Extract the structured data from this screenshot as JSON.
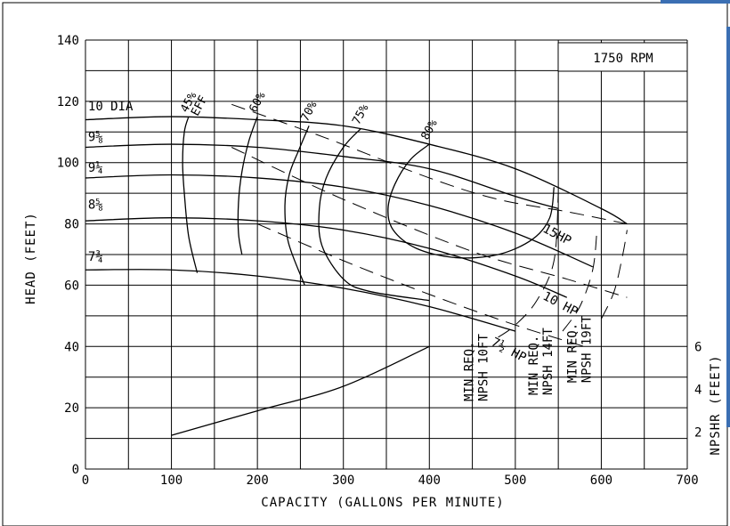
{
  "chart_data": {
    "type": "line",
    "title": "",
    "annotation_rpm": "1750 RPM",
    "xlabel": "CAPACITY (GALLONS PER MINUTE)",
    "ylabel": "HEAD (FEET)",
    "y2label": "NPSHR (FEET)",
    "xlim": [
      0,
      700
    ],
    "ylim": [
      0,
      140
    ],
    "x_ticks": [
      "0",
      "100",
      "200",
      "300",
      "400",
      "500",
      "600",
      "700"
    ],
    "y_ticks": [
      "0",
      "20",
      "40",
      "60",
      "80",
      "100",
      "120",
      "140"
    ],
    "y2_ticks": [
      {
        "label": "2",
        "head": 12
      },
      {
        "label": "4",
        "head": 26
      },
      {
        "label": "6",
        "head": 40
      }
    ],
    "grid": true,
    "impeller_curves": [
      {
        "name": "10 DIA",
        "label_at": [
          3,
          117
        ],
        "x": [
          0,
          100,
          200,
          300,
          400,
          500,
          600,
          630
        ],
        "y": [
          114,
          115,
          114,
          112,
          106,
          98,
          85,
          80
        ]
      },
      {
        "name": "9⅝",
        "label_at": [
          3,
          107
        ],
        "x": [
          0,
          100,
          200,
          300,
          400,
          500,
          550
        ],
        "y": [
          105,
          106,
          105,
          102,
          98,
          89,
          85
        ]
      },
      {
        "name": "9¼",
        "label_at": [
          3,
          97
        ],
        "x": [
          0,
          100,
          200,
          300,
          400,
          500,
          590
        ],
        "y": [
          95,
          96,
          95,
          92,
          86,
          77,
          66
        ]
      },
      {
        "name": "8⅝",
        "label_at": [
          3,
          85
        ],
        "x": [
          0,
          100,
          200,
          300,
          400,
          500,
          560
        ],
        "y": [
          81,
          82,
          81,
          78,
          72,
          63,
          56
        ]
      },
      {
        "name": "7¾",
        "label_at": [
          3,
          68
        ],
        "x": [
          0,
          100,
          200,
          300,
          400,
          500
        ],
        "y": [
          65,
          65,
          63,
          59,
          53,
          45
        ]
      }
    ],
    "efficiency_curves": [
      {
        "label": "45% EFF",
        "x": [
          120,
          115,
          113,
          115,
          120,
          130
        ],
        "y": [
          115,
          110,
          100,
          90,
          76,
          64
        ]
      },
      {
        "label": "60%",
        "x": [
          200,
          190,
          182,
          178,
          178,
          182
        ],
        "y": [
          115,
          107,
          97,
          87,
          77,
          70
        ]
      },
      {
        "label": "70%",
        "x": [
          260,
          248,
          237,
          232,
          236,
          255
        ],
        "y": [
          112,
          104,
          96,
          86,
          74,
          60
        ]
      },
      {
        "label": "75%",
        "x": [
          320,
          300,
          280,
          272,
          275,
          300,
          330,
          400
        ],
        "y": [
          111,
          105,
          95,
          85,
          73,
          62,
          58,
          55
        ]
      },
      {
        "label": "80%",
        "x": [
          400,
          378,
          360,
          352,
          358,
          385,
          430,
          480,
          520,
          540,
          545
        ],
        "y": [
          106,
          101,
          93,
          85,
          78,
          72,
          69,
          70,
          75,
          82,
          92
        ]
      }
    ],
    "horsepower_lines": [
      {
        "label": "15HP",
        "x": [
          170,
          280,
          400,
          480,
          560,
          630
        ],
        "y": [
          119,
          108,
          95,
          88,
          84,
          80
        ]
      },
      {
        "label": "10 HP",
        "x": [
          170,
          300,
          450,
          560,
          630
        ],
        "y": [
          105,
          88,
          71,
          62,
          56
        ]
      },
      {
        "label": "7½ HP",
        "x": [
          200,
          300,
          400,
          500,
          580
        ],
        "y": [
          80,
          68,
          57,
          47,
          40
        ]
      }
    ],
    "npsh_curves": [
      {
        "label": "MIN REQ. NPSH 10FT",
        "x": [
          480,
          500,
          525,
          545,
          550
        ],
        "y": [
          43,
          47,
          55,
          68,
          90
        ]
      },
      {
        "label": "MIN REQ. NPSH 14FT",
        "x": [
          555,
          575,
          590,
          595
        ],
        "y": [
          45,
          53,
          65,
          78
        ]
      },
      {
        "label": "MIN REQ. NPSH 19FT",
        "x": [
          600,
          615,
          625,
          630
        ],
        "y": [
          49,
          58,
          70,
          78
        ]
      }
    ],
    "npshr_curve": {
      "x": [
        100,
        200,
        300,
        400
      ],
      "y": [
        11,
        19,
        27,
        40
      ]
    }
  }
}
